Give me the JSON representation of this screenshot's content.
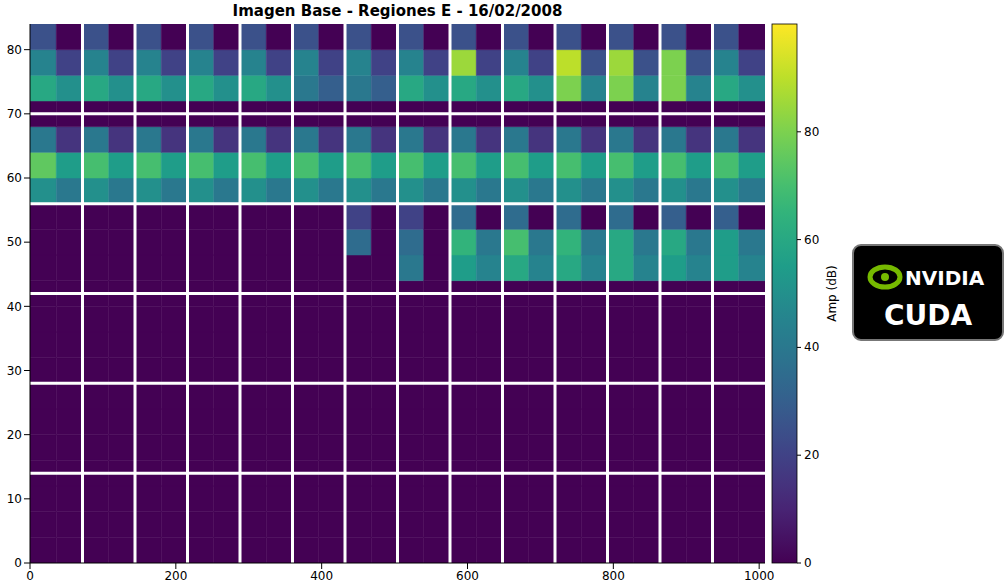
{
  "chart_data": {
    "type": "heatmap",
    "title": "Imagen Base - Regiones E - 16/02/2008",
    "xlim": [
      0,
      1008
    ],
    "xticks": [
      0,
      200,
      400,
      600,
      800,
      1000
    ],
    "ylim": [
      0,
      84
    ],
    "yticks": [
      0,
      10,
      20,
      30,
      40,
      50,
      60,
      70,
      80
    ],
    "x_edges": [
      0,
      36,
      72,
      108,
      144,
      180,
      216,
      252,
      288,
      324,
      360,
      396,
      432,
      468,
      504,
      540,
      576,
      612,
      648,
      684,
      720,
      756,
      792,
      828,
      864,
      900,
      936,
      972,
      1008
    ],
    "y_edges": [
      0,
      4,
      8,
      12,
      16,
      20,
      24,
      28,
      32,
      36,
      40,
      44,
      48,
      52,
      56,
      60,
      64,
      68,
      72,
      76,
      80,
      84
    ],
    "cells": [
      [
        0,
        0,
        0,
        0,
        0,
        0,
        0,
        0,
        0,
        0,
        0,
        0,
        0,
        0,
        0,
        0,
        0,
        0,
        0,
        0,
        0,
        0,
        0,
        0,
        0,
        0,
        0,
        0
      ],
      [
        0,
        0,
        0,
        0,
        0,
        0,
        0,
        0,
        0,
        0,
        0,
        0,
        0,
        0,
        0,
        0,
        0,
        0,
        0,
        0,
        0,
        0,
        0,
        0,
        0,
        0,
        0,
        0
      ],
      [
        0,
        0,
        0,
        0,
        0,
        0,
        0,
        0,
        0,
        0,
        0,
        0,
        0,
        0,
        0,
        0,
        0,
        0,
        0,
        0,
        0,
        0,
        0,
        0,
        0,
        0,
        0,
        0
      ],
      [
        0,
        0,
        0,
        0,
        0,
        0,
        0,
        0,
        0,
        0,
        0,
        0,
        0,
        0,
        0,
        0,
        0,
        0,
        0,
        0,
        0,
        0,
        0,
        0,
        0,
        0,
        0,
        0
      ],
      [
        0,
        0,
        0,
        0,
        0,
        0,
        0,
        0,
        0,
        0,
        0,
        0,
        0,
        0,
        0,
        0,
        0,
        0,
        0,
        0,
        0,
        0,
        0,
        0,
        0,
        0,
        0,
        0
      ],
      [
        0,
        0,
        0,
        0,
        0,
        0,
        0,
        0,
        0,
        0,
        0,
        0,
        0,
        0,
        0,
        0,
        0,
        0,
        0,
        0,
        0,
        0,
        0,
        0,
        0,
        0,
        0,
        0
      ],
      [
        0,
        0,
        0,
        0,
        0,
        0,
        0,
        0,
        0,
        0,
        0,
        0,
        0,
        0,
        0,
        0,
        0,
        0,
        0,
        0,
        0,
        0,
        0,
        0,
        0,
        0,
        0,
        0
      ],
      [
        0,
        0,
        0,
        0,
        0,
        0,
        0,
        0,
        0,
        0,
        0,
        0,
        0,
        0,
        0,
        0,
        0,
        0,
        0,
        0,
        0,
        0,
        0,
        0,
        0,
        0,
        0,
        0
      ],
      [
        0,
        0,
        0,
        0,
        0,
        0,
        0,
        0,
        0,
        0,
        0,
        0,
        0,
        0,
        0,
        0,
        0,
        0,
        0,
        0,
        0,
        0,
        0,
        0,
        0,
        0,
        0,
        0
      ],
      [
        0,
        0,
        0,
        0,
        0,
        0,
        0,
        0,
        0,
        0,
        0,
        0,
        0,
        0,
        0,
        0,
        0,
        0,
        0,
        0,
        0,
        0,
        0,
        0,
        0,
        0,
        0,
        0
      ],
      [
        0,
        0,
        0,
        0,
        0,
        0,
        0,
        0,
        0,
        0,
        0,
        0,
        0,
        0,
        0,
        0,
        0,
        0,
        0,
        0,
        0,
        0,
        0,
        0,
        0,
        0,
        0,
        0
      ],
      [
        0,
        0,
        0,
        0,
        0,
        0,
        0,
        0,
        0,
        0,
        0,
        0,
        0,
        0,
        40,
        0,
        55,
        45,
        60,
        45,
        60,
        45,
        60,
        45,
        55,
        45,
        55,
        45
      ],
      [
        0,
        0,
        0,
        0,
        0,
        0,
        0,
        0,
        0,
        0,
        0,
        0,
        35,
        0,
        35,
        0,
        65,
        40,
        70,
        40,
        65,
        40,
        60,
        40,
        60,
        40,
        55,
        40
      ],
      [
        0,
        0,
        0,
        0,
        0,
        0,
        0,
        0,
        0,
        0,
        0,
        0,
        20,
        0,
        20,
        0,
        35,
        0,
        35,
        0,
        35,
        0,
        35,
        0,
        30,
        0,
        30,
        0
      ],
      [
        50,
        40,
        50,
        40,
        50,
        40,
        50,
        40,
        50,
        40,
        50,
        40,
        50,
        40,
        50,
        40,
        50,
        40,
        50,
        40,
        50,
        40,
        50,
        40,
        50,
        40,
        50,
        40
      ],
      [
        75,
        55,
        70,
        55,
        70,
        55,
        70,
        55,
        70,
        55,
        70,
        55,
        70,
        55,
        70,
        55,
        70,
        55,
        70,
        55,
        70,
        55,
        70,
        55,
        70,
        55,
        70,
        55
      ],
      [
        40,
        15,
        40,
        15,
        40,
        15,
        40,
        15,
        40,
        15,
        40,
        15,
        40,
        15,
        40,
        15,
        40,
        15,
        40,
        15,
        40,
        15,
        40,
        15,
        40,
        15,
        40,
        15
      ],
      [
        0,
        0,
        0,
        0,
        0,
        0,
        0,
        0,
        0,
        0,
        0,
        0,
        0,
        0,
        0,
        0,
        0,
        0,
        0,
        0,
        0,
        0,
        0,
        0,
        0,
        0,
        0,
        0
      ],
      [
        60,
        50,
        60,
        50,
        60,
        50,
        60,
        50,
        60,
        50,
        40,
        30,
        40,
        30,
        60,
        50,
        60,
        50,
        60,
        50,
        80,
        45,
        80,
        45,
        80,
        45,
        60,
        50
      ],
      [
        45,
        20,
        45,
        20,
        45,
        20,
        45,
        20,
        45,
        20,
        45,
        20,
        45,
        20,
        45,
        20,
        85,
        20,
        45,
        20,
        90,
        25,
        85,
        25,
        80,
        25,
        45,
        20
      ],
      [
        25,
        0,
        25,
        0,
        25,
        0,
        25,
        0,
        25,
        0,
        25,
        0,
        25,
        0,
        25,
        0,
        25,
        0,
        25,
        0,
        25,
        0,
        25,
        0,
        25,
        0,
        25,
        0
      ]
    ],
    "dividers": {
      "x": [
        72,
        144,
        216,
        288,
        360,
        432,
        504,
        576,
        648,
        720,
        792,
        864,
        936
      ],
      "y": [
        14,
        28,
        42,
        56,
        70
      ]
    },
    "colorbar": {
      "label": "Amp (dB)",
      "range": [
        0,
        100
      ],
      "ticks": [
        0,
        20,
        40,
        60,
        80
      ]
    },
    "logo": {
      "lines": [
        "NVIDIA",
        "CUDA"
      ]
    }
  }
}
